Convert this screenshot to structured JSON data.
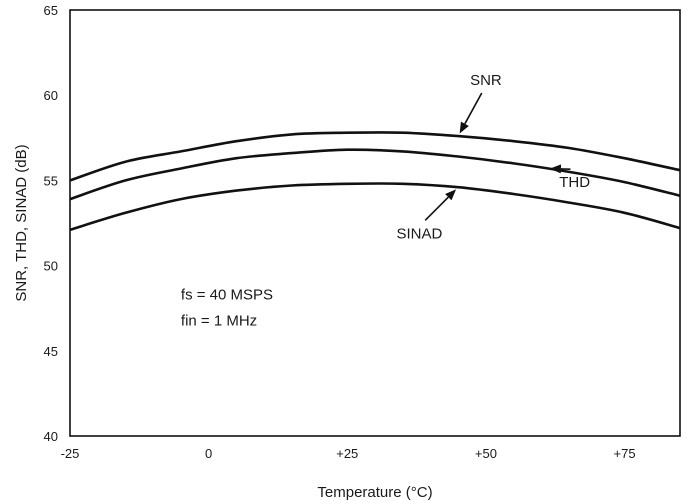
{
  "chart_data": {
    "type": "line",
    "xlabel": "Temperature (°C)",
    "ylabel": "SNR, THD, SINAD (dB)",
    "xlim": [
      -25,
      85
    ],
    "ylim": [
      40,
      65
    ],
    "x_ticks": [
      -25,
      0,
      25,
      50,
      75
    ],
    "x_tick_labels": [
      "-25",
      "0",
      "+25",
      "+50",
      "+75"
    ],
    "y_ticks": [
      40,
      45,
      50,
      55,
      60,
      65
    ],
    "y_tick_labels": [
      "40",
      "45",
      "50",
      "55",
      "60",
      "65"
    ],
    "grid": false,
    "series": [
      {
        "name": "SNR",
        "x": [
          -25,
          -15,
          -5,
          5,
          15,
          25,
          35,
          45,
          55,
          65,
          75,
          85
        ],
        "y": [
          55.0,
          56.1,
          56.7,
          57.3,
          57.7,
          57.8,
          57.8,
          57.6,
          57.3,
          56.9,
          56.3,
          55.6
        ]
      },
      {
        "name": "THD",
        "x": [
          -25,
          -15,
          -5,
          5,
          15,
          25,
          35,
          45,
          55,
          65,
          75,
          85
        ],
        "y": [
          53.9,
          55.0,
          55.7,
          56.3,
          56.6,
          56.8,
          56.7,
          56.4,
          56.0,
          55.5,
          54.9,
          54.1
        ]
      },
      {
        "name": "SINAD",
        "x": [
          -25,
          -15,
          -5,
          5,
          15,
          25,
          35,
          45,
          55,
          65,
          75,
          85
        ],
        "y": [
          52.1,
          53.1,
          53.9,
          54.4,
          54.7,
          54.8,
          54.8,
          54.6,
          54.2,
          53.7,
          53.1,
          52.2
        ]
      }
    ],
    "annotations": [
      {
        "text": "SNR",
        "series": "SNR",
        "x": 45,
        "y": 57.6,
        "label_x": 50,
        "label_y": 60.6
      },
      {
        "text": "THD",
        "series": "THD",
        "x": 61,
        "y": 55.7,
        "label_x": 66,
        "label_y": 54.6
      },
      {
        "text": "SINAD",
        "series": "SINAD",
        "x": 45,
        "y": 54.6,
        "label_x": 38,
        "label_y": 51.6
      }
    ],
    "conditions": [
      "fs = 40 MSPS",
      "fin = 1 MHz"
    ]
  }
}
